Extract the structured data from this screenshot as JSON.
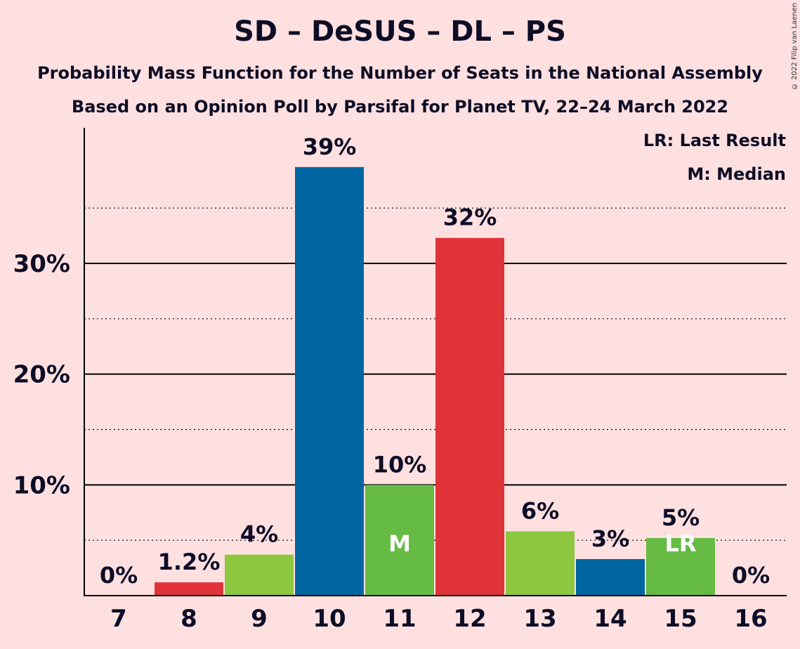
{
  "title": "SD – DeSUS – DL – PS",
  "subtitle": "Probability Mass Function for the Number of Seats in the National Assembly",
  "subtitle2": "Based on an Opinion Poll by Parsifal for Planet TV, 22–24 March 2022",
  "copyright": "© 2022 Filip van Laenen",
  "legend": {
    "last_result": "LR: Last Result",
    "median": "M: Median"
  },
  "chart_data": {
    "type": "bar",
    "categories": [
      "7",
      "8",
      "9",
      "10",
      "11",
      "12",
      "13",
      "14",
      "15",
      "16"
    ],
    "values": [
      0,
      1.2,
      3.7,
      38.7,
      10,
      32.3,
      5.8,
      3.3,
      5.2,
      0
    ],
    "data_labels": [
      "0%",
      "1.2%",
      "4%",
      "39%",
      "10%",
      "32%",
      "6%",
      "3%",
      "5%",
      "0%"
    ],
    "bar_colors": [
      "#e03339",
      "#e03339",
      "#8dc63f",
      "#0066a1",
      "#66bb44",
      "#e03339",
      "#8dc63f",
      "#0066a1",
      "#66bb44",
      "#e03339"
    ],
    "bar_markers": [
      "",
      "",
      "",
      "",
      "M",
      "",
      "",
      "",
      "LR",
      ""
    ],
    "y_ticks": [
      10,
      20,
      30
    ],
    "y_tick_labels": [
      "10%",
      "20%",
      "30%"
    ],
    "minor_gridlines": [
      5,
      15,
      25,
      35
    ],
    "ylim": [
      0,
      42
    ]
  }
}
